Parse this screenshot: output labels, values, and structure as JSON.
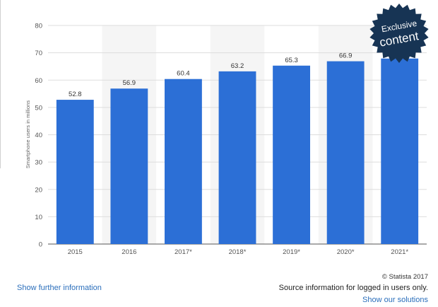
{
  "chart_data": {
    "type": "bar",
    "categories": [
      "2015",
      "2016",
      "2017*",
      "2018*",
      "2019*",
      "2020*",
      "2021*"
    ],
    "values": [
      52.8,
      56.9,
      60.4,
      63.2,
      65.3,
      66.9,
      67.9
    ],
    "value_labels": [
      "52.8",
      "56.9",
      "60.4",
      "63.2",
      "65.3",
      "66.9",
      ""
    ],
    "ylabel": "Smartphone users in millions",
    "ylim": [
      0,
      80
    ],
    "yticks": [
      0,
      10,
      20,
      30,
      40,
      50,
      60,
      70,
      80
    ],
    "grid": true,
    "bar_color": "#2c6fd6"
  },
  "badge": {
    "line1": "Exclusive",
    "line2": "content",
    "color": "#173454"
  },
  "footer": {
    "copyright": "© Statista 2017",
    "show_further": "Show further information",
    "source_info": "Source information for logged in users only.",
    "show_solutions": "Show our solutions"
  },
  "colors": {
    "link": "#2a6ebb",
    "grid": "#dddddd"
  }
}
